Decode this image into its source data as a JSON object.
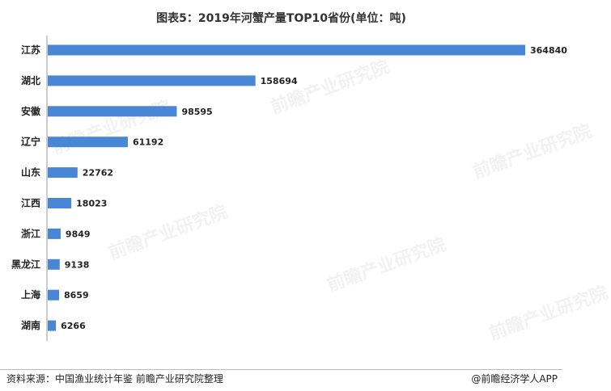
{
  "chart_data": {
    "type": "bar",
    "orientation": "horizontal",
    "title": "图表5：2019年河蟹产量TOP10省份(单位：吨)",
    "categories": [
      "江苏",
      "湖北",
      "安徽",
      "辽宁",
      "山东",
      "江西",
      "浙江",
      "黑龙江",
      "上海",
      "湖南"
    ],
    "values": [
      364840,
      158694,
      98595,
      61192,
      22762,
      18023,
      9849,
      9138,
      8659,
      6266
    ],
    "xlim": [
      0,
      364840
    ],
    "bar_color": "#4a86d6",
    "grid": false
  },
  "footer": {
    "source": "资料来源：中国渔业统计年鉴 前瞻产业研究院整理",
    "credit": "@前瞻经济学人APP"
  },
  "watermark": {
    "text": "前瞻产业研究院"
  }
}
